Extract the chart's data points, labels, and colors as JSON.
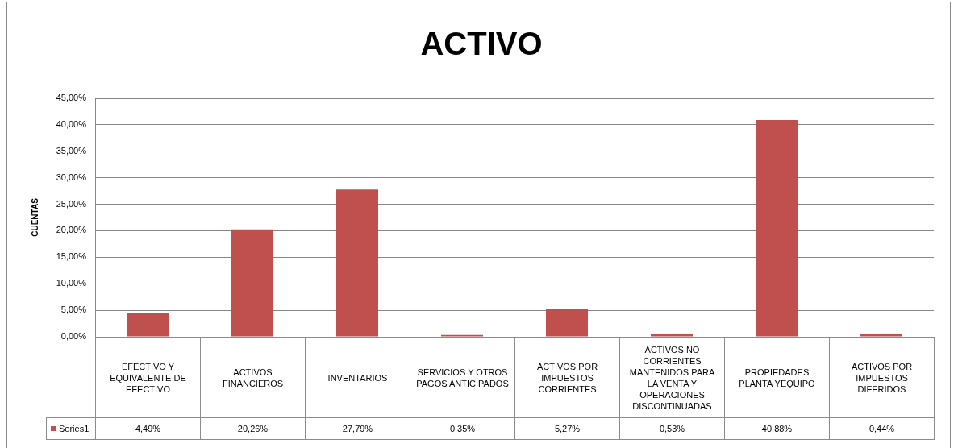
{
  "chart_data": {
    "type": "bar",
    "title": "ACTIVO",
    "ylabel": "CUENTAS",
    "categories": [
      "EFECTIVO Y EQUIVALENTE DE EFECTIVO",
      "ACTIVOS FINANCIEROS",
      "INVENTARIOS",
      "SERVICIOS Y OTROS PAGOS ANTICIPADOS",
      "ACTIVOS POR IMPUESTOS CORRIENTES",
      "ACTIVOS NO CORRIENTES MANTENIDOS PARA LA VENTA Y OPERACIONES DISCONTINUADAS",
      "PROPIEDADES PLANTA YEQUIPO",
      "ACTIVOS POR IMPUESTOS DIFERIDOS"
    ],
    "series": [
      {
        "name": "Series1",
        "color": "#c0504d",
        "values": [
          4.49,
          20.26,
          27.79,
          0.35,
          5.27,
          0.53,
          40.88,
          0.44
        ],
        "value_labels": [
          "4,49%",
          "20,26%",
          "27,79%",
          "0,35%",
          "5,27%",
          "0,53%",
          "40,88%",
          "0,44%"
        ]
      }
    ],
    "ylim": [
      0,
      45
    ],
    "yticks": [
      {
        "value": 0,
        "label": "0,00%"
      },
      {
        "value": 5,
        "label": "5,00%"
      },
      {
        "value": 10,
        "label": "10,00%"
      },
      {
        "value": 15,
        "label": "15,00%"
      },
      {
        "value": 20,
        "label": "20,00%"
      },
      {
        "value": 25,
        "label": "25,00%"
      },
      {
        "value": 30,
        "label": "30,00%"
      },
      {
        "value": 35,
        "label": "35,00%"
      },
      {
        "value": 40,
        "label": "40,00%"
      },
      {
        "value": 45,
        "label": "45,00%"
      }
    ],
    "grid": "y",
    "legend": "bottom"
  }
}
